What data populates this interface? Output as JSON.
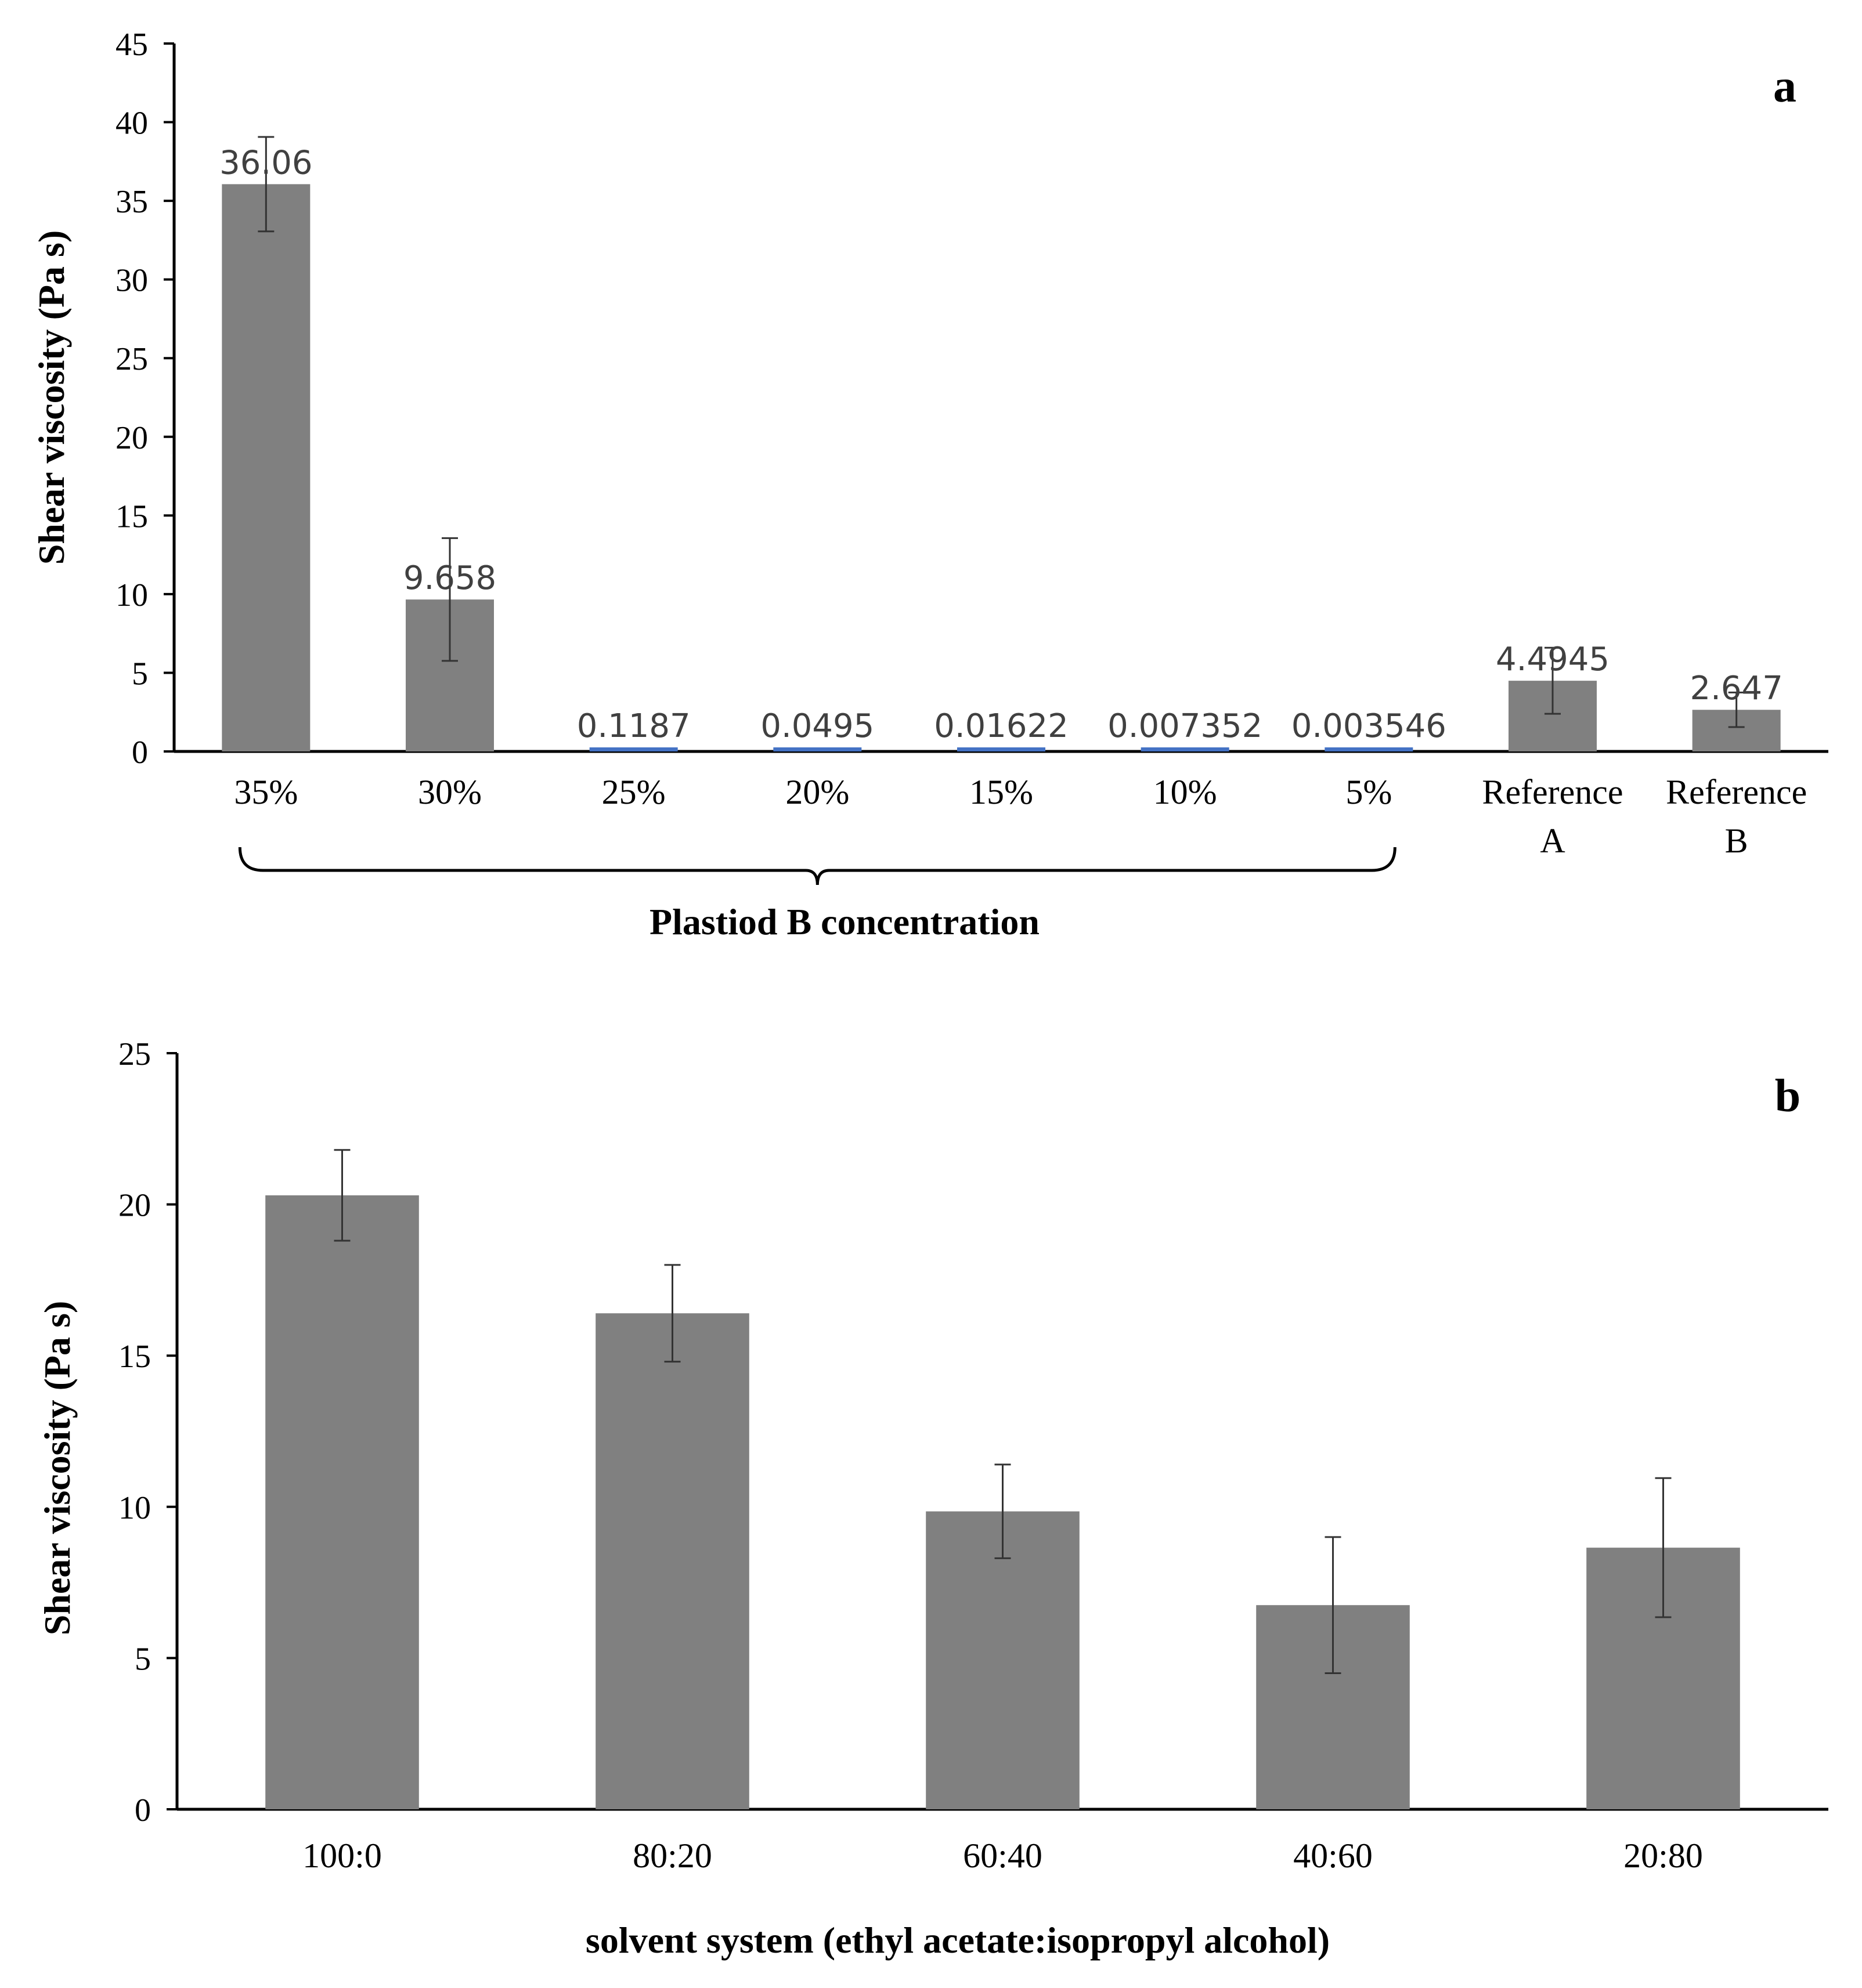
{
  "chart_data": [
    {
      "type": "bar",
      "panel_label": "a",
      "ylabel": "Shear viscosity (Pa s)",
      "group_label": "Plastiod B concentration",
      "ylim": [
        0,
        45
      ],
      "yticks": [
        0,
        5,
        10,
        15,
        20,
        25,
        30,
        35,
        40,
        45
      ],
      "categories": [
        "35%",
        "30%",
        "25%",
        "20%",
        "15%",
        "10%",
        "5%",
        "Reference\nA",
        "Reference\nB"
      ],
      "values": [
        36.06,
        9.658,
        0.1187,
        0.0495,
        0.01622,
        0.007352,
        0.003546,
        4.4945,
        2.647
      ],
      "data_labels": [
        "36.06",
        "9.658",
        "0.1187",
        "0.0495",
        "0.01622",
        "0.007352",
        "0.003546",
        "4.4945",
        "2.647"
      ],
      "errors": [
        3.0,
        3.9,
        0.0,
        0.0,
        0.0,
        0.0,
        0.0,
        2.1,
        1.1
      ],
      "bar_colors": [
        "#808080",
        "#808080",
        "#4472c4",
        "#4472c4",
        "#4472c4",
        "#4472c4",
        "#4472c4",
        "#808080",
        "#808080"
      ],
      "grouped_range": [
        0,
        6
      ]
    },
    {
      "type": "bar",
      "panel_label": "b",
      "ylabel": "Shear viscosity (Pa s)",
      "xlabel": "solvent system (ethyl acetate:isopropyl alcohol)",
      "ylim": [
        0,
        25
      ],
      "yticks": [
        0,
        5,
        10,
        15,
        20,
        25
      ],
      "categories": [
        "100:0",
        "80:20",
        "60:40",
        "40:60",
        "20:80"
      ],
      "values": [
        20.3,
        16.4,
        9.85,
        6.75,
        8.65
      ],
      "errors": [
        1.5,
        1.6,
        1.55,
        2.25,
        2.3
      ],
      "bar_colors": [
        "#808080",
        "#808080",
        "#808080",
        "#808080",
        "#808080"
      ]
    }
  ]
}
